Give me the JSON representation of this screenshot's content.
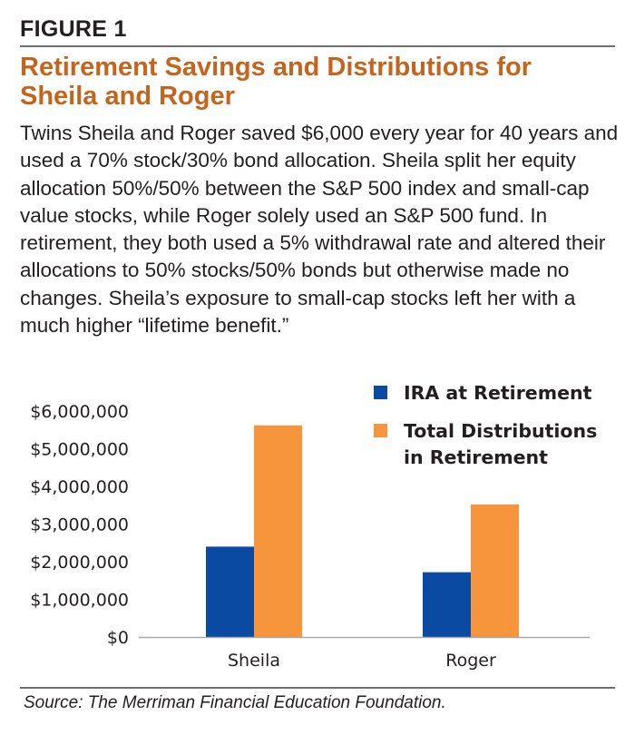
{
  "figure_label": "FIGURE 1",
  "caption": "Twins Sheila and Roger saved $6,000 every year for 40 years and used a 70% stock/30% bond allocation. Sheila split her equity allocation 50%/50% between the S&P 500 index and small-cap value stocks, while Roger solely used an S&P 500 fund. In retirement, they both used a 5% withdrawal rate and altered their allocations to 50% stocks/50% bonds but otherwise made no changes. Sheila’s exposure to small-cap stocks left her with a much higher “lifetime benefit.”",
  "source": "Source: The Merriman Financial Education Foundation.",
  "colors": {
    "ira": "#0a4aa3",
    "total": "#f7953d",
    "title": "#c5641c"
  },
  "chart_data": {
    "type": "bar",
    "title": "Retirement Savings and Distributions for Sheila and Roger",
    "xlabel": "",
    "ylabel": "",
    "categories": [
      "Sheila",
      "Roger"
    ],
    "series": [
      {
        "name": "IRA at Retirement",
        "values": [
          2400000,
          1720000
        ]
      },
      {
        "name": "Total Distributions in Retirement",
        "values": [
          5620000,
          3520000
        ]
      }
    ],
    "ylim": [
      0,
      6000000
    ],
    "yticks": [
      0,
      1000000,
      2000000,
      3000000,
      4000000,
      5000000,
      6000000
    ],
    "ytick_labels": [
      "$0",
      "$1,000,000",
      "$2,000,000",
      "$3,000,000",
      "$4,000,000",
      "$5,000,000",
      "$6,000,000"
    ],
    "legend_position": "top-right",
    "legend_labels": [
      [
        "IRA at Retirement"
      ],
      [
        "Total Distributions",
        "in Retirement"
      ]
    ],
    "grid": false
  }
}
